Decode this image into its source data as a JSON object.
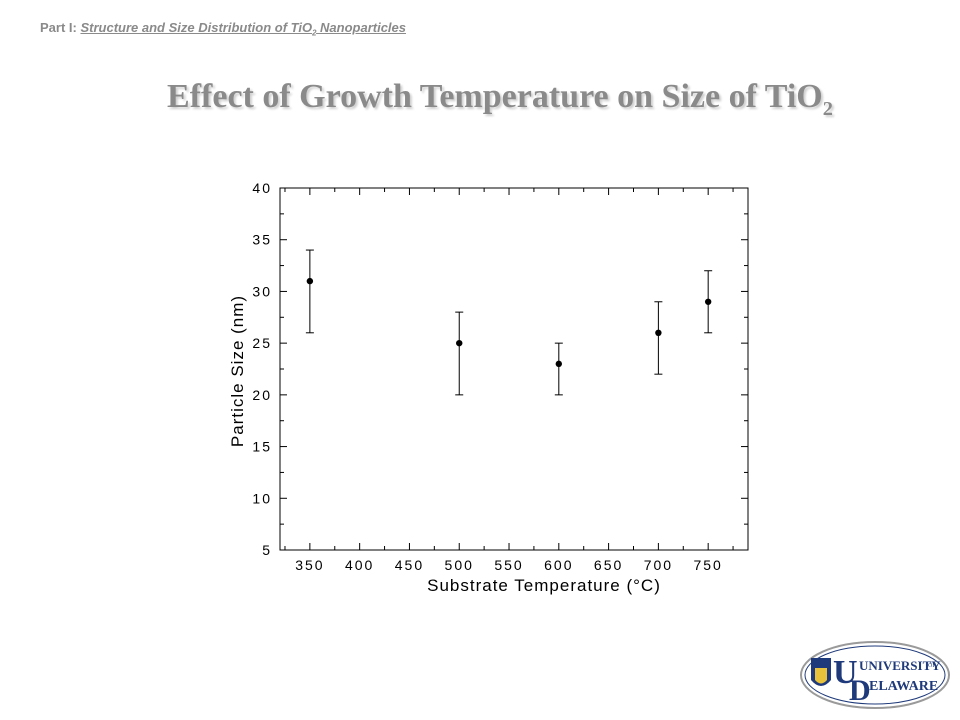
{
  "header": {
    "part_label": "Part I:",
    "topic_main": "Structure and Size Distribution of TiO",
    "topic_sub": "2",
    "topic_tail": " Nanoparticles"
  },
  "slide": {
    "title_main": "Effect of Growth Temperature on Size of TiO",
    "title_sub": "2"
  },
  "chart_data": {
    "type": "scatter",
    "title": "",
    "xlabel": "Substrate Temperature (°C)",
    "ylabel": "Particle Size (nm)",
    "xlim": [
      320,
      790
    ],
    "ylim": [
      5,
      40
    ],
    "xticks": [
      350,
      400,
      450,
      500,
      550,
      600,
      650,
      700,
      750
    ],
    "yticks": [
      5,
      10,
      15,
      20,
      25,
      30,
      35,
      40
    ],
    "grid": false,
    "points": [
      {
        "x": 350,
        "y": 31,
        "err_low": 26,
        "err_high": 34
      },
      {
        "x": 500,
        "y": 25,
        "err_low": 20,
        "err_high": 28
      },
      {
        "x": 600,
        "y": 23,
        "err_low": 20,
        "err_high": 25
      },
      {
        "x": 700,
        "y": 26,
        "err_low": 22,
        "err_high": 29
      },
      {
        "x": 750,
        "y": 29,
        "err_low": 26,
        "err_high": 32
      }
    ],
    "marker_color": "#000000"
  },
  "logo": {
    "line1": "UNIVERSITY",
    "of": "OF",
    "line2": "ELAWARE",
    "initials_u": "U",
    "initials_d": "D",
    "colors": {
      "blue": "#1f3a7a",
      "gold": "#e8c23a"
    }
  }
}
